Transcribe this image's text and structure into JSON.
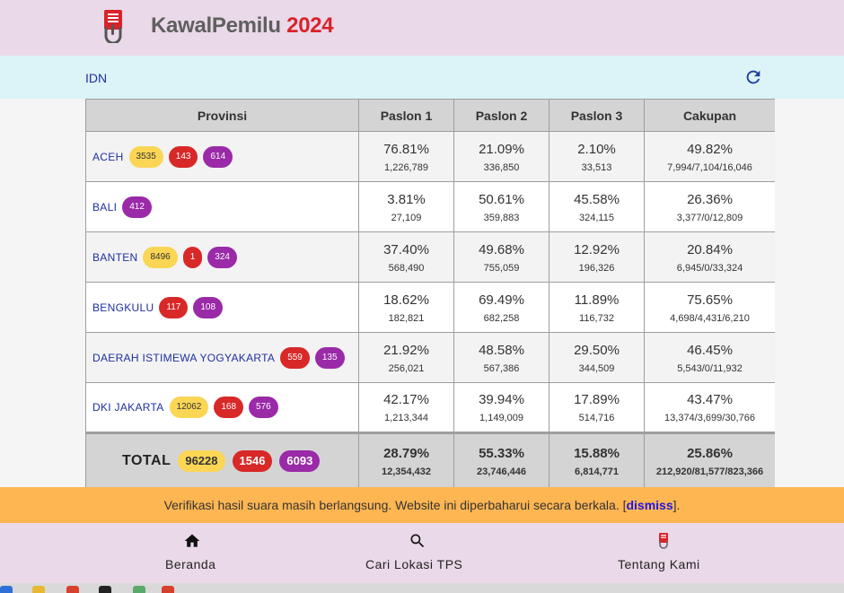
{
  "app": {
    "brand_name": "KawalPemilu",
    "brand_year": "2024"
  },
  "breadcrumb": {
    "path": "IDN"
  },
  "table": {
    "headers": {
      "provinsi": "Provinsi",
      "paslon1": "Paslon 1",
      "paslon2": "Paslon 2",
      "paslon3": "Paslon 3",
      "cakupan": "Cakupan"
    },
    "rows": [
      {
        "name": "ACEH",
        "badges": [
          "3535",
          "143",
          "614"
        ],
        "p1_pct": "76.81%",
        "p1_cnt": "1,226,789",
        "p2_pct": "21.09%",
        "p2_cnt": "336,850",
        "p3_pct": "2.10%",
        "p3_cnt": "33,513",
        "cak_pct": "49.82%",
        "cak_cnt": "7,994/7,104/16,046"
      },
      {
        "name": "BALI",
        "badges": [
          "412"
        ],
        "p1_pct": "3.81%",
        "p1_cnt": "27,109",
        "p2_pct": "50.61%",
        "p2_cnt": "359,883",
        "p3_pct": "45.58%",
        "p3_cnt": "324,115",
        "cak_pct": "26.36%",
        "cak_cnt": "3,377/0/12,809"
      },
      {
        "name": "BANTEN",
        "badges": [
          "8496",
          "1",
          "324"
        ],
        "p1_pct": "37.40%",
        "p1_cnt": "568,490",
        "p2_pct": "49.68%",
        "p2_cnt": "755,059",
        "p3_pct": "12.92%",
        "p3_cnt": "196,326",
        "cak_pct": "20.84%",
        "cak_cnt": "6,945/0/33,324"
      },
      {
        "name": "BENGKULU",
        "badges": [
          "117",
          "108"
        ],
        "p1_pct": "18.62%",
        "p1_cnt": "182,821",
        "p2_pct": "69.49%",
        "p2_cnt": "682,258",
        "p3_pct": "11.89%",
        "p3_cnt": "116,732",
        "cak_pct": "75.65%",
        "cak_cnt": "4,698/4,431/6,210"
      },
      {
        "name": "DAERAH ISTIMEWA YOGYAKARTA",
        "badges": [
          "559",
          "135"
        ],
        "p1_pct": "21.92%",
        "p1_cnt": "256,021",
        "p2_pct": "48.58%",
        "p2_cnt": "567,386",
        "p3_pct": "29.50%",
        "p3_cnt": "344,509",
        "cak_pct": "46.45%",
        "cak_cnt": "5,543/0/11,932"
      },
      {
        "name": "DKI JAKARTA",
        "badges": [
          "12062",
          "168",
          "576"
        ],
        "p1_pct": "42.17%",
        "p1_cnt": "1,213,344",
        "p2_pct": "39.94%",
        "p2_cnt": "1,149,009",
        "p3_pct": "17.89%",
        "p3_cnt": "514,716",
        "cak_pct": "43.47%",
        "cak_cnt": "13,374/3,699/30,766"
      }
    ],
    "total": {
      "label": "TOTAL",
      "badges": [
        "96228",
        "1546",
        "6093"
      ],
      "p1_pct": "28.79%",
      "p1_cnt": "12,354,432",
      "p2_pct": "55.33%",
      "p2_cnt": "23,746,446",
      "p3_pct": "15.88%",
      "p3_cnt": "6,814,771",
      "cak_pct": "25.86%",
      "cak_cnt": "212,920/81,577/823,366"
    }
  },
  "notice": {
    "text": "Verifikasi hasil suara masih berlangsung. Website ini diperbaharui secara berkala. [",
    "link": "dismiss",
    "close": "]."
  },
  "bottom_nav": [
    {
      "label": "Beranda",
      "icon": "home-icon"
    },
    {
      "label": "Cari Lokasi TPS",
      "icon": "search-icon"
    },
    {
      "label": "Tentang Kami",
      "icon": "logo-icon"
    }
  ],
  "colors": {
    "header_bg": "#ead9e9",
    "subbar_bg": "#dcf3f7",
    "badge_yellow": "#fbd655",
    "badge_red": "#d82828",
    "badge_purple": "#9a2aa8",
    "notice_bg": "#feb652",
    "brand_red": "#d8232a"
  }
}
